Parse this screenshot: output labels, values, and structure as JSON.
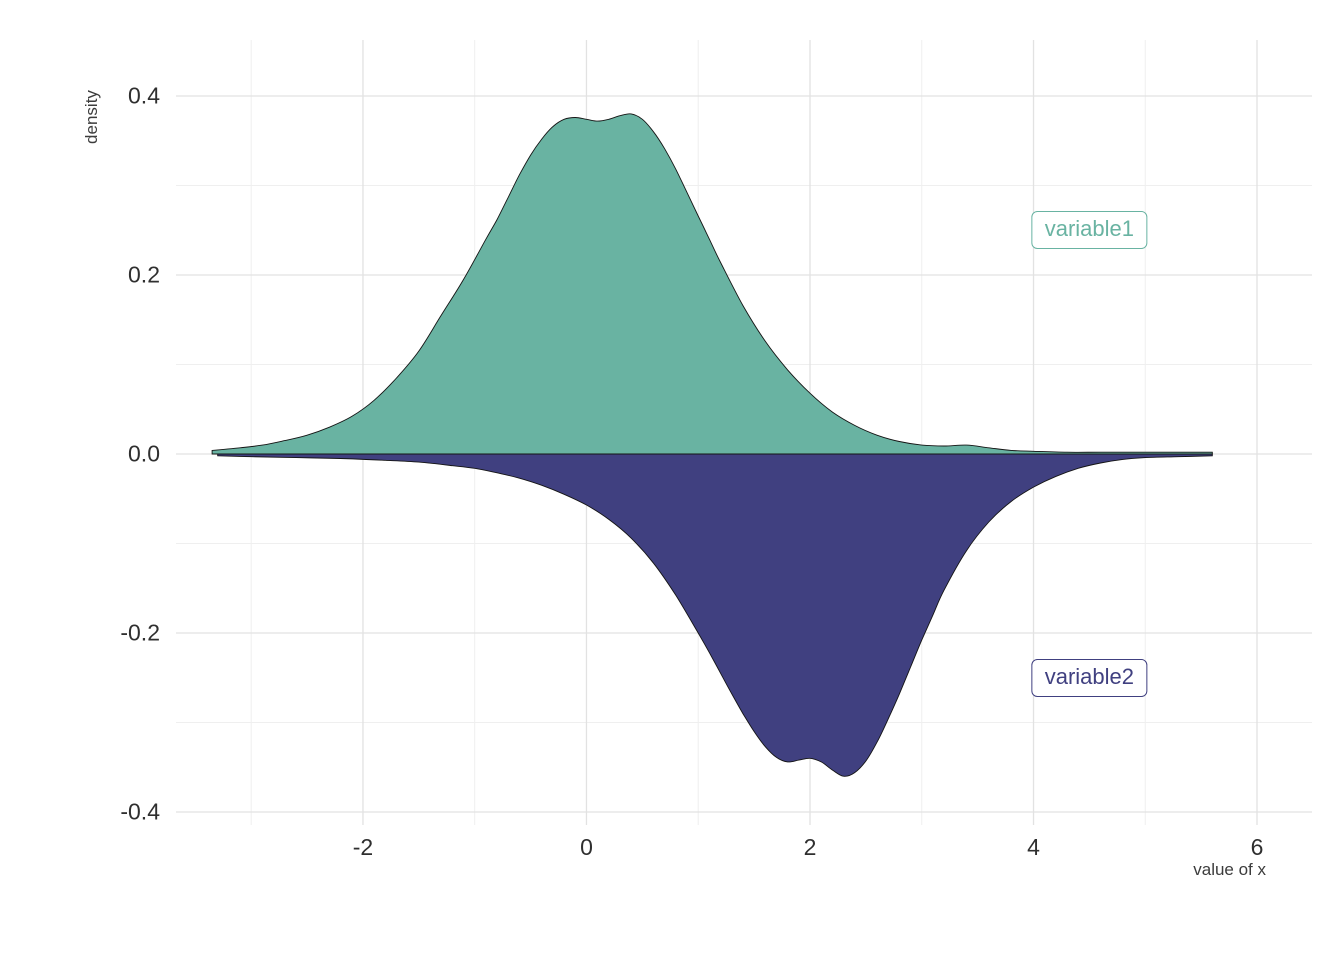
{
  "chart_data": {
    "type": "area",
    "title": "",
    "xlabel": "value of x",
    "ylabel": "density",
    "xlim": [
      -3.673,
      6.492
    ],
    "ylim": [
      -0.4145,
      0.4626
    ],
    "grid": {
      "major_color": "#e2e2e2",
      "minor_color": "#efefef",
      "background": "#ffffff"
    },
    "outline_color": "#141414",
    "axis_text_color": "#2f2f2f",
    "axis_title_color": "#3c3c3c",
    "x_ticks": {
      "major": [
        -2,
        0,
        2,
        4,
        6
      ],
      "labels": [
        "-2",
        "0",
        "2",
        "4",
        "6"
      ],
      "minor": [
        -3,
        -1,
        1,
        3,
        5
      ]
    },
    "y_ticks": {
      "major": [
        0.4,
        0.2,
        0.0,
        -0.2,
        -0.4
      ],
      "labels": [
        "0.4",
        "0.2",
        "0.0",
        "-0.2",
        "-0.4"
      ],
      "minor": [
        0.3,
        0.1,
        -0.1,
        -0.3
      ]
    },
    "series": [
      {
        "name": "variable1",
        "color": "#69b3a2",
        "direction": 1,
        "label": {
          "text": "variable1",
          "x": 4.5,
          "y": 0.25
        },
        "x": [
          -3.35,
          -3.1,
          -2.9,
          -2.7,
          -2.5,
          -2.3,
          -2.1,
          -1.9,
          -1.7,
          -1.5,
          -1.3,
          -1.1,
          -0.9,
          -0.8,
          -0.7,
          -0.6,
          -0.5,
          -0.4,
          -0.3,
          -0.2,
          -0.1,
          0.0,
          0.1,
          0.2,
          0.3,
          0.4,
          0.5,
          0.6,
          0.7,
          0.8,
          0.9,
          1.0,
          1.1,
          1.2,
          1.4,
          1.6,
          1.8,
          2.0,
          2.2,
          2.4,
          2.6,
          2.8,
          3.0,
          3.2,
          3.4,
          3.6,
          3.8,
          4.0,
          4.3,
          4.6,
          5.0,
          5.6
        ],
        "density": [
          0.004,
          0.007,
          0.01,
          0.015,
          0.021,
          0.03,
          0.042,
          0.06,
          0.085,
          0.115,
          0.155,
          0.195,
          0.24,
          0.262,
          0.287,
          0.312,
          0.334,
          0.352,
          0.366,
          0.374,
          0.376,
          0.374,
          0.372,
          0.374,
          0.378,
          0.38,
          0.374,
          0.36,
          0.341,
          0.318,
          0.292,
          0.266,
          0.24,
          0.214,
          0.166,
          0.126,
          0.094,
          0.068,
          0.047,
          0.032,
          0.021,
          0.014,
          0.01,
          0.009,
          0.01,
          0.007,
          0.004,
          0.003,
          0.002,
          0.002,
          0.002,
          0.002
        ]
      },
      {
        "name": "variable2",
        "color": "#404080",
        "direction": -1,
        "label": {
          "text": "variable2",
          "x": 4.5,
          "y": -0.25
        },
        "x": [
          -3.3,
          -3.0,
          -2.6,
          -2.2,
          -1.8,
          -1.5,
          -1.2,
          -1.0,
          -0.8,
          -0.6,
          -0.4,
          -0.2,
          0.0,
          0.2,
          0.4,
          0.6,
          0.8,
          1.0,
          1.1,
          1.2,
          1.3,
          1.4,
          1.5,
          1.6,
          1.7,
          1.8,
          1.9,
          2.0,
          2.1,
          2.2,
          2.3,
          2.4,
          2.5,
          2.6,
          2.7,
          2.8,
          2.9,
          3.0,
          3.1,
          3.2,
          3.4,
          3.6,
          3.8,
          4.0,
          4.2,
          4.4,
          4.6,
          4.8,
          5.0,
          5.3,
          5.6
        ],
        "density": [
          0.002,
          0.003,
          0.004,
          0.005,
          0.007,
          0.009,
          0.013,
          0.016,
          0.021,
          0.027,
          0.035,
          0.045,
          0.057,
          0.073,
          0.094,
          0.122,
          0.158,
          0.2,
          0.222,
          0.245,
          0.268,
          0.29,
          0.31,
          0.327,
          0.339,
          0.344,
          0.342,
          0.34,
          0.344,
          0.353,
          0.36,
          0.356,
          0.343,
          0.322,
          0.296,
          0.268,
          0.238,
          0.208,
          0.18,
          0.152,
          0.108,
          0.076,
          0.053,
          0.037,
          0.025,
          0.016,
          0.01,
          0.006,
          0.004,
          0.003,
          0.002
        ]
      }
    ]
  }
}
